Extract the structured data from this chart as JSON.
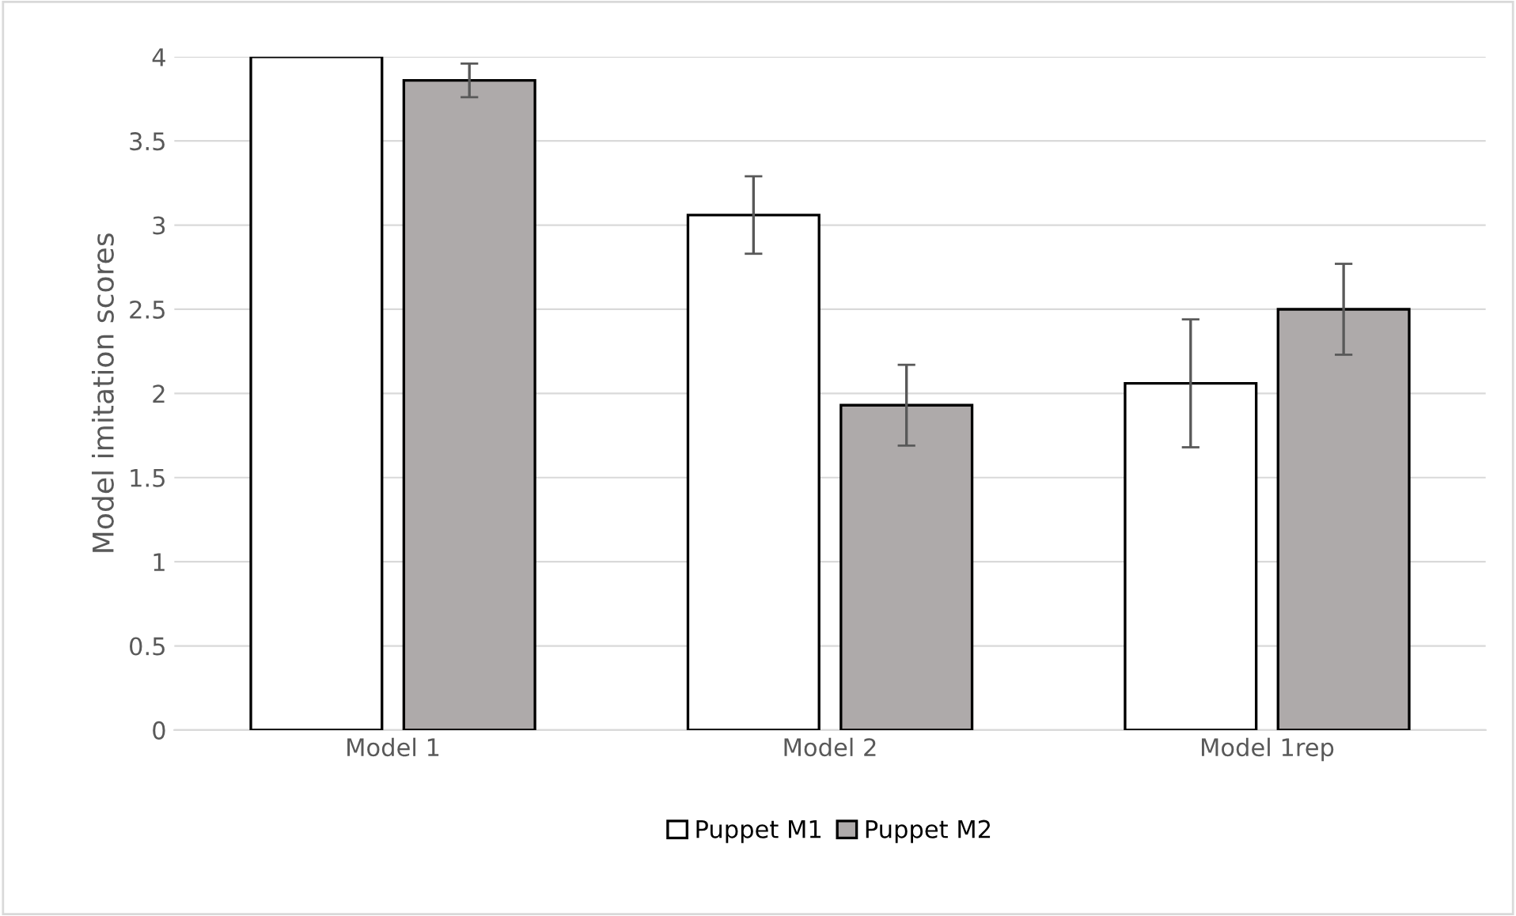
{
  "chart_data": {
    "type": "bar",
    "ylabel": "Model imitation scores",
    "categories": [
      "Model 1",
      "Model 2",
      "Model 1rep"
    ],
    "series": [
      {
        "name": "Puppet M1",
        "color": "#ffffff",
        "values": [
          4.0,
          3.06,
          2.06
        ],
        "errors": [
          null,
          0.23,
          0.38
        ]
      },
      {
        "name": "Puppet M2",
        "color": "#aeaaaa",
        "values": [
          3.86,
          1.93,
          2.5
        ],
        "errors": [
          0.1,
          0.24,
          0.27
        ]
      }
    ],
    "ylim": [
      0,
      4
    ],
    "yticks": [
      0,
      0.5,
      1,
      1.5,
      2,
      2.5,
      3,
      3.5,
      4
    ],
    "grid": "y",
    "legend": "bottom"
  }
}
